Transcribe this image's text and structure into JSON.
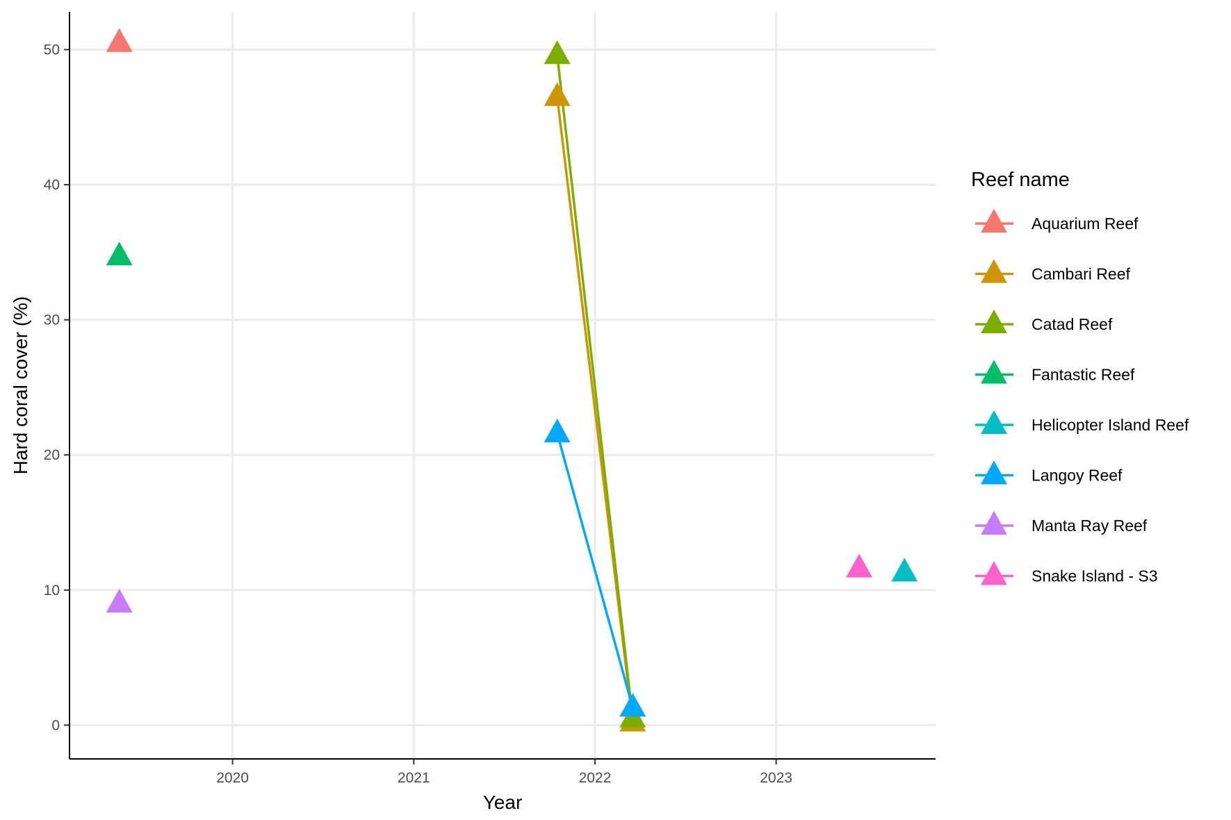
{
  "chart_data": {
    "type": "line",
    "xlabel": "Year",
    "ylabel": "Hard coral cover (%)",
    "xlim": [
      2019.1,
      2023.88
    ],
    "ylim": [
      -2.5,
      52.8
    ],
    "x_ticks": [
      2020,
      2021,
      2022,
      2023
    ],
    "y_ticks": [
      0,
      10,
      20,
      30,
      40,
      50
    ],
    "grid": true,
    "marker": "triangle",
    "legend": {
      "title": "Reef name",
      "placement": "right"
    },
    "series": [
      {
        "name": "Aquarium Reef",
        "color": "#F8766D",
        "points": [
          {
            "x": "2019-05",
            "y": 50.5
          }
        ]
      },
      {
        "name": "Cambari Reef",
        "color": "#CD9600",
        "points": [
          {
            "x": "2021-10",
            "y": 46.5
          },
          {
            "x": "2022-03",
            "y": 0.2
          }
        ]
      },
      {
        "name": "Catad Reef",
        "color": "#7CAE00",
        "points": [
          {
            "x": "2021-10",
            "y": 49.6
          },
          {
            "x": "2022-03",
            "y": 0.5
          }
        ]
      },
      {
        "name": "Fantastic Reef",
        "color": "#00BE67",
        "points": [
          {
            "x": "2019-05",
            "y": 34.7
          }
        ]
      },
      {
        "name": "Helicopter Island Reef",
        "color": "#00BFC4",
        "points": [
          {
            "x": "2023-09",
            "y": 11.3
          }
        ]
      },
      {
        "name": "Langoy Reef",
        "color": "#00A9FF",
        "points": [
          {
            "x": "2021-10",
            "y": 21.6
          },
          {
            "x": "2022-03",
            "y": 1.3
          }
        ]
      },
      {
        "name": "Manta Ray Reef",
        "color": "#C77CFF",
        "points": [
          {
            "x": "2019-05",
            "y": 9.0
          }
        ]
      },
      {
        "name": "Snake Island - S3",
        "color": "#FF61CC",
        "points": [
          {
            "x": "2023-06",
            "y": 11.6
          }
        ]
      }
    ]
  }
}
